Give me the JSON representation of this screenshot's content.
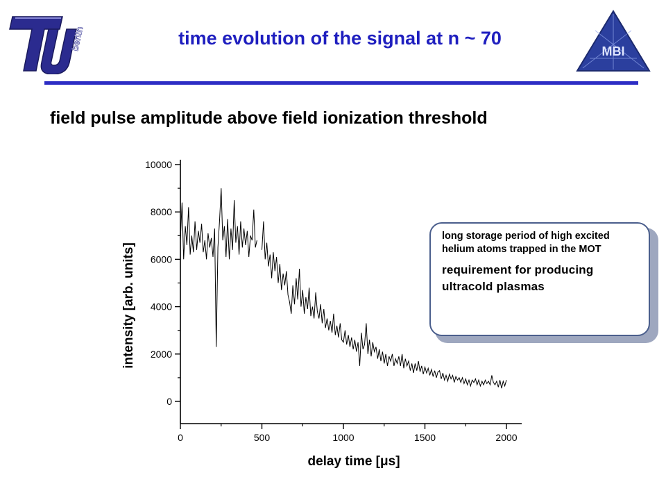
{
  "header": {
    "title": "time evolution of the signal at n ~ 70",
    "logo_left_text": "berlin",
    "logo_right_text": "MBI"
  },
  "subtitle": "field pulse amplitude above field ionization threshold",
  "callout": {
    "line1": "long storage period of high excited helium atoms trapped in the MOT",
    "line2": "requirement for producing ultracold plasmas"
  },
  "chart_data": {
    "type": "line",
    "title": "",
    "xlabel": "delay time [μs]",
    "ylabel": "intensity [arb. units]",
    "xlim": [
      0,
      2100
    ],
    "ylim": [
      -1000,
      10200
    ],
    "xticks": [
      0,
      500,
      1000,
      1500,
      2000
    ],
    "yticks": [
      0,
      2000,
      4000,
      6000,
      8000,
      10000
    ],
    "grid": false,
    "series": [
      {
        "name": "",
        "description_points": [
          [
            0,
            6800
          ],
          [
            10,
            8400
          ],
          [
            20,
            6000
          ],
          [
            30,
            7400
          ],
          [
            40,
            6600
          ],
          [
            50,
            8200
          ],
          [
            60,
            6200
          ],
          [
            70,
            7000
          ],
          [
            80,
            6300
          ],
          [
            90,
            7600
          ],
          [
            100,
            6400
          ],
          [
            110,
            7200
          ],
          [
            120,
            6700
          ],
          [
            130,
            7500
          ],
          [
            140,
            6300
          ],
          [
            150,
            6800
          ],
          [
            160,
            6000
          ],
          [
            170,
            7100
          ],
          [
            180,
            6500
          ],
          [
            190,
            6900
          ],
          [
            200,
            6100
          ],
          [
            210,
            7300
          ],
          [
            220,
            2300
          ],
          [
            230,
            6500
          ],
          [
            240,
            7600
          ],
          [
            250,
            9000
          ],
          [
            260,
            6800
          ],
          [
            270,
            7400
          ],
          [
            280,
            6100
          ],
          [
            290,
            7700
          ],
          [
            300,
            6000
          ],
          [
            310,
            7300
          ],
          [
            320,
            6400
          ],
          [
            330,
            8500
          ],
          [
            340,
            6700
          ],
          [
            350,
            7400
          ],
          [
            360,
            6200
          ],
          [
            370,
            7600
          ],
          [
            380,
            6500
          ],
          [
            390,
            7300
          ],
          [
            400,
            6600
          ],
          [
            410,
            7200
          ],
          [
            420,
            6100
          ],
          [
            430,
            7000
          ],
          [
            440,
            6800
          ],
          [
            450,
            8100
          ],
          [
            460,
            6500
          ],
          [
            470,
            6800
          ],
          [
            500,
            6400
          ],
          [
            510,
            7600
          ],
          [
            520,
            6000
          ],
          [
            530,
            6700
          ],
          [
            540,
            5700
          ],
          [
            550,
            6200
          ],
          [
            560,
            5200
          ],
          [
            570,
            6300
          ],
          [
            580,
            5500
          ],
          [
            590,
            6100
          ],
          [
            600,
            5000
          ],
          [
            610,
            5800
          ],
          [
            620,
            4700
          ],
          [
            630,
            5400
          ],
          [
            640,
            4900
          ],
          [
            650,
            5500
          ],
          [
            660,
            4500
          ],
          [
            670,
            4200
          ],
          [
            680,
            3700
          ],
          [
            690,
            4900
          ],
          [
            700,
            4100
          ],
          [
            710,
            5200
          ],
          [
            720,
            4300
          ],
          [
            730,
            5600
          ],
          [
            740,
            4000
          ],
          [
            750,
            4700
          ],
          [
            760,
            3700
          ],
          [
            770,
            4400
          ],
          [
            780,
            3900
          ],
          [
            790,
            4800
          ],
          [
            800,
            3600
          ],
          [
            810,
            4000
          ],
          [
            820,
            3500
          ],
          [
            830,
            4600
          ],
          [
            840,
            3800
          ],
          [
            850,
            3500
          ],
          [
            860,
            4100
          ],
          [
            870,
            3300
          ],
          [
            880,
            3900
          ],
          [
            890,
            3100
          ],
          [
            900,
            3500
          ],
          [
            910,
            3000
          ],
          [
            920,
            3400
          ],
          [
            930,
            2900
          ],
          [
            940,
            3700
          ],
          [
            950,
            2800
          ],
          [
            960,
            3200
          ],
          [
            970,
            2700
          ],
          [
            980,
            3300
          ],
          [
            990,
            2600
          ],
          [
            1000,
            2500
          ],
          [
            1010,
            3000
          ],
          [
            1020,
            2400
          ],
          [
            1030,
            2800
          ],
          [
            1040,
            2300
          ],
          [
            1050,
            2700
          ],
          [
            1060,
            2200
          ],
          [
            1070,
            2600
          ],
          [
            1080,
            2100
          ],
          [
            1090,
            2500
          ],
          [
            1100,
            1500
          ],
          [
            1110,
            2900
          ],
          [
            1120,
            2200
          ],
          [
            1130,
            2400
          ],
          [
            1140,
            3300
          ],
          [
            1150,
            2000
          ],
          [
            1160,
            2600
          ],
          [
            1170,
            1900
          ],
          [
            1180,
            2500
          ],
          [
            1190,
            2100
          ],
          [
            1200,
            2300
          ],
          [
            1210,
            1800
          ],
          [
            1220,
            2200
          ],
          [
            1230,
            1700
          ],
          [
            1240,
            2100
          ],
          [
            1250,
            1600
          ],
          [
            1260,
            2000
          ],
          [
            1270,
            1500
          ],
          [
            1280,
            1900
          ],
          [
            1290,
            1700
          ],
          [
            1300,
            2000
          ],
          [
            1310,
            1500
          ],
          [
            1320,
            1800
          ],
          [
            1330,
            1600
          ],
          [
            1340,
            1900
          ],
          [
            1350,
            1500
          ],
          [
            1360,
            2000
          ],
          [
            1370,
            1400
          ],
          [
            1380,
            1800
          ],
          [
            1390,
            1500
          ],
          [
            1400,
            1700
          ],
          [
            1410,
            1300
          ],
          [
            1420,
            1600
          ],
          [
            1430,
            1200
          ],
          [
            1440,
            1600
          ],
          [
            1450,
            1300
          ],
          [
            1460,
            1700
          ],
          [
            1470,
            1250
          ],
          [
            1480,
            1500
          ],
          [
            1490,
            1150
          ],
          [
            1500,
            1450
          ],
          [
            1510,
            1200
          ],
          [
            1520,
            1400
          ],
          [
            1530,
            1100
          ],
          [
            1540,
            1350
          ],
          [
            1550,
            1050
          ],
          [
            1560,
            1300
          ],
          [
            1570,
            1000
          ],
          [
            1580,
            1250
          ],
          [
            1590,
            1300
          ],
          [
            1600,
            950
          ],
          [
            1610,
            1200
          ],
          [
            1620,
            900
          ],
          [
            1630,
            1100
          ],
          [
            1640,
            850
          ],
          [
            1650,
            1150
          ],
          [
            1660,
            950
          ],
          [
            1670,
            1100
          ],
          [
            1680,
            800
          ],
          [
            1690,
            1050
          ],
          [
            1700,
            900
          ],
          [
            1710,
            1000
          ],
          [
            1720,
            800
          ],
          [
            1730,
            1000
          ],
          [
            1740,
            750
          ],
          [
            1750,
            950
          ],
          [
            1760,
            700
          ],
          [
            1770,
            900
          ],
          [
            1780,
            650
          ],
          [
            1790,
            900
          ],
          [
            1800,
            800
          ],
          [
            1810,
            950
          ],
          [
            1820,
            700
          ],
          [
            1830,
            900
          ],
          [
            1840,
            650
          ],
          [
            1850,
            850
          ],
          [
            1860,
            700
          ],
          [
            1870,
            900
          ],
          [
            1880,
            750
          ],
          [
            1890,
            850
          ],
          [
            1900,
            700
          ],
          [
            1910,
            1100
          ],
          [
            1920,
            800
          ],
          [
            1930,
            700
          ],
          [
            1940,
            850
          ],
          [
            1950,
            600
          ],
          [
            1960,
            900
          ],
          [
            1970,
            550
          ],
          [
            1980,
            850
          ],
          [
            1990,
            650
          ],
          [
            2000,
            900
          ]
        ]
      }
    ]
  }
}
